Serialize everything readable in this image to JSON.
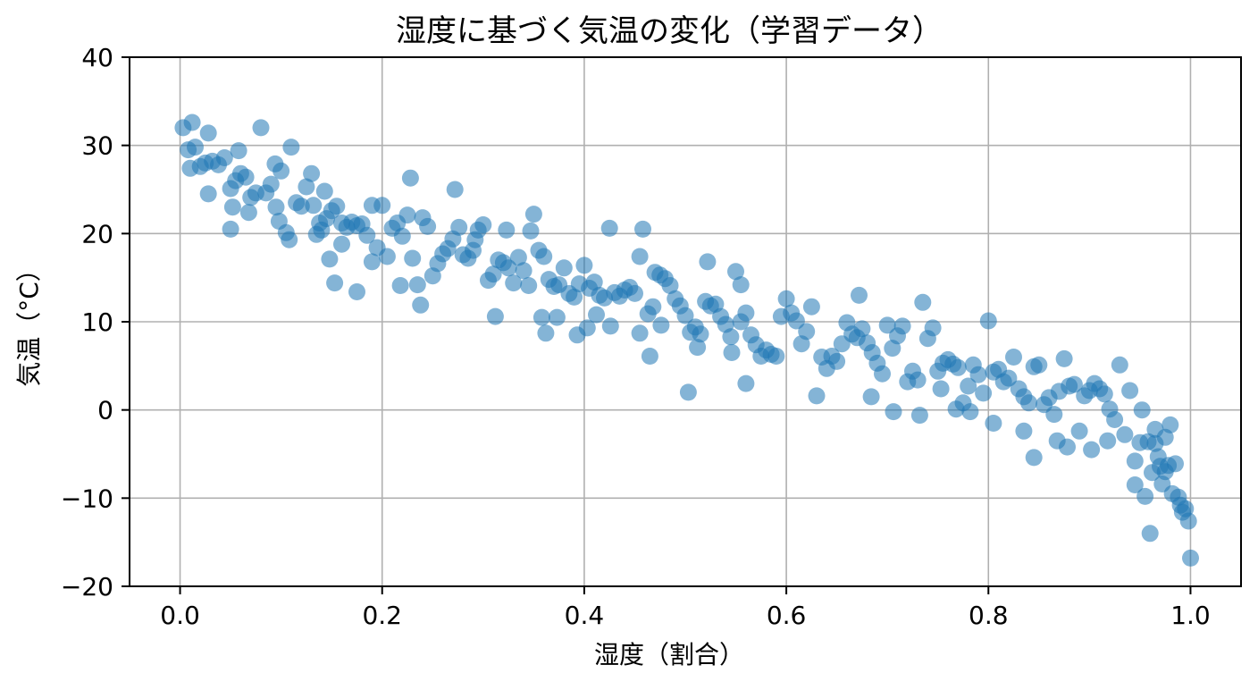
{
  "chart_data": {
    "type": "scatter",
    "title": "湿度に基づく気温の変化（学習データ）",
    "xlabel": "湿度（割合）",
    "ylabel": "気温（°C）",
    "xlim": [
      -0.05,
      1.05
    ],
    "ylim": [
      -20,
      40
    ],
    "xticks": [
      0.0,
      0.2,
      0.4,
      0.6,
      0.8,
      1.0
    ],
    "xtick_labels": [
      "0.0",
      "0.2",
      "0.4",
      "0.6",
      "0.8",
      "1.0"
    ],
    "yticks": [
      -20,
      -10,
      0,
      10,
      20,
      30,
      40
    ],
    "ytick_labels": [
      "−20",
      "−10",
      "0",
      "10",
      "20",
      "30",
      "40"
    ],
    "grid": true,
    "legend": false,
    "marker_color": "#1f77b4",
    "marker_alpha": 0.55,
    "series": [
      {
        "points": [
          [
            0.003,
            32.0
          ],
          [
            0.012,
            32.6
          ],
          [
            0.008,
            29.5
          ],
          [
            0.015,
            29.8
          ],
          [
            0.028,
            31.4
          ],
          [
            0.01,
            27.4
          ],
          [
            0.02,
            27.6
          ],
          [
            0.025,
            28.0
          ],
          [
            0.032,
            28.2
          ],
          [
            0.038,
            27.8
          ],
          [
            0.044,
            28.6
          ],
          [
            0.028,
            24.5
          ],
          [
            0.05,
            25.1
          ],
          [
            0.055,
            26.0
          ],
          [
            0.06,
            26.8
          ],
          [
            0.065,
            26.4
          ],
          [
            0.07,
            24.1
          ],
          [
            0.075,
            24.6
          ],
          [
            0.058,
            29.4
          ],
          [
            0.08,
            32.0
          ],
          [
            0.05,
            20.5
          ],
          [
            0.052,
            23.0
          ],
          [
            0.068,
            22.4
          ],
          [
            0.085,
            24.6
          ],
          [
            0.09,
            25.6
          ],
          [
            0.094,
            27.9
          ],
          [
            0.1,
            27.1
          ],
          [
            0.11,
            29.8
          ],
          [
            0.098,
            21.4
          ],
          [
            0.105,
            20.1
          ],
          [
            0.108,
            19.3
          ],
          [
            0.095,
            23.0
          ],
          [
            0.115,
            23.5
          ],
          [
            0.12,
            23.1
          ],
          [
            0.125,
            25.3
          ],
          [
            0.13,
            26.8
          ],
          [
            0.132,
            23.2
          ],
          [
            0.138,
            21.2
          ],
          [
            0.143,
            24.8
          ],
          [
            0.14,
            20.4
          ],
          [
            0.135,
            19.9
          ],
          [
            0.145,
            21.7
          ],
          [
            0.15,
            22.6
          ],
          [
            0.155,
            23.1
          ],
          [
            0.16,
            21.2
          ],
          [
            0.165,
            20.7
          ],
          [
            0.17,
            21.3
          ],
          [
            0.175,
            20.9
          ],
          [
            0.18,
            21.1
          ],
          [
            0.148,
            17.1
          ],
          [
            0.16,
            18.8
          ],
          [
            0.153,
            14.4
          ],
          [
            0.175,
            13.4
          ],
          [
            0.185,
            19.8
          ],
          [
            0.19,
            16.8
          ],
          [
            0.195,
            18.4
          ],
          [
            0.19,
            23.2
          ],
          [
            0.2,
            23.2
          ],
          [
            0.205,
            17.4
          ],
          [
            0.21,
            20.6
          ],
          [
            0.215,
            21.2
          ],
          [
            0.22,
            19.7
          ],
          [
            0.225,
            22.1
          ],
          [
            0.228,
            26.3
          ],
          [
            0.23,
            17.2
          ],
          [
            0.235,
            14.2
          ],
          [
            0.24,
            21.8
          ],
          [
            0.245,
            20.8
          ],
          [
            0.218,
            14.1
          ],
          [
            0.238,
            11.9
          ],
          [
            0.25,
            15.2
          ],
          [
            0.255,
            16.6
          ],
          [
            0.26,
            17.7
          ],
          [
            0.265,
            18.3
          ],
          [
            0.27,
            19.4
          ],
          [
            0.272,
            25.0
          ],
          [
            0.276,
            20.7
          ],
          [
            0.28,
            17.6
          ],
          [
            0.285,
            17.2
          ],
          [
            0.29,
            18.1
          ],
          [
            0.292,
            19.3
          ],
          [
            0.295,
            20.4
          ],
          [
            0.3,
            21.0
          ],
          [
            0.305,
            14.7
          ],
          [
            0.31,
            15.4
          ],
          [
            0.315,
            17.0
          ],
          [
            0.32,
            16.7
          ],
          [
            0.325,
            16.1
          ],
          [
            0.33,
            14.4
          ],
          [
            0.335,
            17.3
          ],
          [
            0.34,
            15.8
          ],
          [
            0.345,
            14.1
          ],
          [
            0.35,
            22.2
          ],
          [
            0.355,
            18.1
          ],
          [
            0.36,
            17.4
          ],
          [
            0.312,
            10.6
          ],
          [
            0.323,
            20.4
          ],
          [
            0.347,
            20.3
          ],
          [
            0.365,
            14.8
          ],
          [
            0.37,
            14.0
          ],
          [
            0.375,
            14.2
          ],
          [
            0.38,
            16.1
          ],
          [
            0.385,
            13.2
          ],
          [
            0.39,
            12.8
          ],
          [
            0.395,
            14.3
          ],
          [
            0.4,
            16.4
          ],
          [
            0.405,
            13.8
          ],
          [
            0.41,
            14.5
          ],
          [
            0.358,
            10.5
          ],
          [
            0.362,
            8.7
          ],
          [
            0.373,
            10.5
          ],
          [
            0.393,
            8.5
          ],
          [
            0.403,
            9.3
          ],
          [
            0.412,
            10.8
          ],
          [
            0.415,
            13.0
          ],
          [
            0.42,
            12.7
          ],
          [
            0.425,
            20.6
          ],
          [
            0.43,
            13.3
          ],
          [
            0.435,
            12.9
          ],
          [
            0.44,
            13.6
          ],
          [
            0.445,
            13.9
          ],
          [
            0.45,
            13.2
          ],
          [
            0.455,
            17.4
          ],
          [
            0.458,
            20.5
          ],
          [
            0.463,
            10.9
          ],
          [
            0.468,
            11.7
          ],
          [
            0.426,
            9.5
          ],
          [
            0.455,
            8.7
          ],
          [
            0.47,
            15.6
          ],
          [
            0.475,
            15.3
          ],
          [
            0.48,
            14.9
          ],
          [
            0.485,
            14.1
          ],
          [
            0.49,
            12.6
          ],
          [
            0.495,
            11.8
          ],
          [
            0.5,
            10.7
          ],
          [
            0.465,
            6.1
          ],
          [
            0.476,
            9.6
          ],
          [
            0.505,
            8.8
          ],
          [
            0.51,
            9.4
          ],
          [
            0.515,
            8.6
          ],
          [
            0.52,
            12.3
          ],
          [
            0.522,
            16.8
          ],
          [
            0.525,
            11.8
          ],
          [
            0.53,
            12.0
          ],
          [
            0.535,
            10.6
          ],
          [
            0.54,
            9.7
          ],
          [
            0.545,
            8.3
          ],
          [
            0.55,
            15.7
          ],
          [
            0.555,
            14.2
          ],
          [
            0.56,
            11.0
          ],
          [
            0.503,
            2.0
          ],
          [
            0.512,
            7.1
          ],
          [
            0.546,
            6.5
          ],
          [
            0.555,
            10.0
          ],
          [
            0.56,
            3.0
          ],
          [
            0.565,
            8.5
          ],
          [
            0.57,
            7.4
          ],
          [
            0.575,
            6.1
          ],
          [
            0.58,
            6.8
          ],
          [
            0.585,
            6.3
          ],
          [
            0.59,
            6.1
          ],
          [
            0.595,
            10.6
          ],
          [
            0.6,
            12.6
          ],
          [
            0.605,
            11.0
          ],
          [
            0.61,
            10.1
          ],
          [
            0.615,
            7.5
          ],
          [
            0.62,
            8.9
          ],
          [
            0.625,
            11.7
          ],
          [
            0.63,
            1.6
          ],
          [
            0.635,
            6.0
          ],
          [
            0.64,
            4.7
          ],
          [
            0.645,
            6.1
          ],
          [
            0.65,
            5.5
          ],
          [
            0.655,
            7.5
          ],
          [
            0.66,
            9.9
          ],
          [
            0.665,
            8.6
          ],
          [
            0.67,
            8.2
          ],
          [
            0.672,
            13.0
          ],
          [
            0.675,
            9.2
          ],
          [
            0.68,
            7.6
          ],
          [
            0.685,
            6.5
          ],
          [
            0.69,
            5.3
          ],
          [
            0.695,
            4.1
          ],
          [
            0.7,
            9.6
          ],
          [
            0.705,
            7.0
          ],
          [
            0.71,
            8.4
          ],
          [
            0.715,
            9.5
          ],
          [
            0.684,
            1.5
          ],
          [
            0.706,
            -0.2
          ],
          [
            0.72,
            3.2
          ],
          [
            0.725,
            4.4
          ],
          [
            0.73,
            3.4
          ],
          [
            0.735,
            12.2
          ],
          [
            0.74,
            8.1
          ],
          [
            0.745,
            9.3
          ],
          [
            0.75,
            4.4
          ],
          [
            0.755,
            5.3
          ],
          [
            0.76,
            5.7
          ],
          [
            0.732,
            -0.6
          ],
          [
            0.753,
            2.4
          ],
          [
            0.765,
            5.2
          ],
          [
            0.77,
            4.8
          ],
          [
            0.775,
            0.8
          ],
          [
            0.78,
            2.7
          ],
          [
            0.785,
            5.1
          ],
          [
            0.79,
            4.0
          ],
          [
            0.795,
            1.9
          ],
          [
            0.8,
            10.1
          ],
          [
            0.805,
            4.3
          ],
          [
            0.81,
            4.6
          ],
          [
            0.815,
            3.2
          ],
          [
            0.82,
            3.6
          ],
          [
            0.768,
            0.1
          ],
          [
            0.782,
            -0.2
          ],
          [
            0.805,
            -1.5
          ],
          [
            0.825,
            6.0
          ],
          [
            0.83,
            2.4
          ],
          [
            0.835,
            1.5
          ],
          [
            0.84,
            0.8
          ],
          [
            0.845,
            4.9
          ],
          [
            0.85,
            5.1
          ],
          [
            0.855,
            0.6
          ],
          [
            0.86,
            1.4
          ],
          [
            0.865,
            -0.5
          ],
          [
            0.87,
            2.1
          ],
          [
            0.875,
            5.8
          ],
          [
            0.88,
            2.7
          ],
          [
            0.885,
            2.9
          ],
          [
            0.835,
            -2.4
          ],
          [
            0.845,
            -5.4
          ],
          [
            0.868,
            -3.5
          ],
          [
            0.878,
            -4.2
          ],
          [
            0.89,
            -2.4
          ],
          [
            0.895,
            1.6
          ],
          [
            0.9,
            2.2
          ],
          [
            0.905,
            3.0
          ],
          [
            0.91,
            2.4
          ],
          [
            0.915,
            1.8
          ],
          [
            0.92,
            0.1
          ],
          [
            0.925,
            -1.1
          ],
          [
            0.93,
            5.1
          ],
          [
            0.935,
            -2.8
          ],
          [
            0.94,
            2.2
          ],
          [
            0.945,
            -5.8
          ],
          [
            0.95,
            -3.7
          ],
          [
            0.955,
            -9.8
          ],
          [
            0.902,
            -4.5
          ],
          [
            0.918,
            -3.5
          ],
          [
            0.945,
            -8.5
          ],
          [
            0.96,
            -14.0
          ],
          [
            0.962,
            -7.1
          ],
          [
            0.965,
            -3.8
          ],
          [
            0.968,
            -5.3
          ],
          [
            0.97,
            -6.4
          ],
          [
            0.972,
            -8.4
          ],
          [
            0.975,
            -7.0
          ],
          [
            0.978,
            -6.3
          ],
          [
            0.98,
            -1.7
          ],
          [
            0.982,
            -9.5
          ],
          [
            0.985,
            -6.1
          ],
          [
            0.988,
            -9.9
          ],
          [
            0.99,
            -10.8
          ],
          [
            0.992,
            -11.6
          ],
          [
            0.995,
            -11.2
          ],
          [
            0.998,
            -12.6
          ],
          [
            1.0,
            -16.8
          ],
          [
            0.952,
            0.0
          ],
          [
            0.958,
            -3.6
          ],
          [
            0.975,
            -3.1
          ],
          [
            0.965,
            -2.2
          ]
        ]
      }
    ]
  }
}
